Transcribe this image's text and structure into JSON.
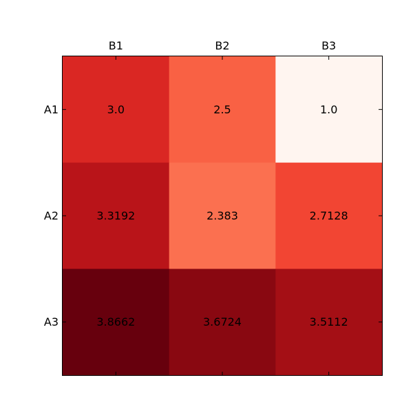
{
  "chart_data": {
    "type": "heatmap",
    "title": "",
    "xlabel": "",
    "ylabel": "",
    "colormap": "Reds",
    "x_categories": [
      "B1",
      "B2",
      "B3"
    ],
    "y_categories": [
      "A1",
      "A2",
      "A3"
    ],
    "x_axis_position": "top",
    "grid": false,
    "vmin": 1.0,
    "vmax": 3.8662,
    "values": [
      [
        "3.0",
        "2.5",
        "1.0"
      ],
      [
        "3.3192",
        "2.383",
        "2.7128"
      ],
      [
        "3.8662",
        "3.6724",
        "3.5112"
      ]
    ],
    "colors": {
      "low": "#fff5f0",
      "high": "#67000d",
      "frame": "#000000"
    }
  }
}
